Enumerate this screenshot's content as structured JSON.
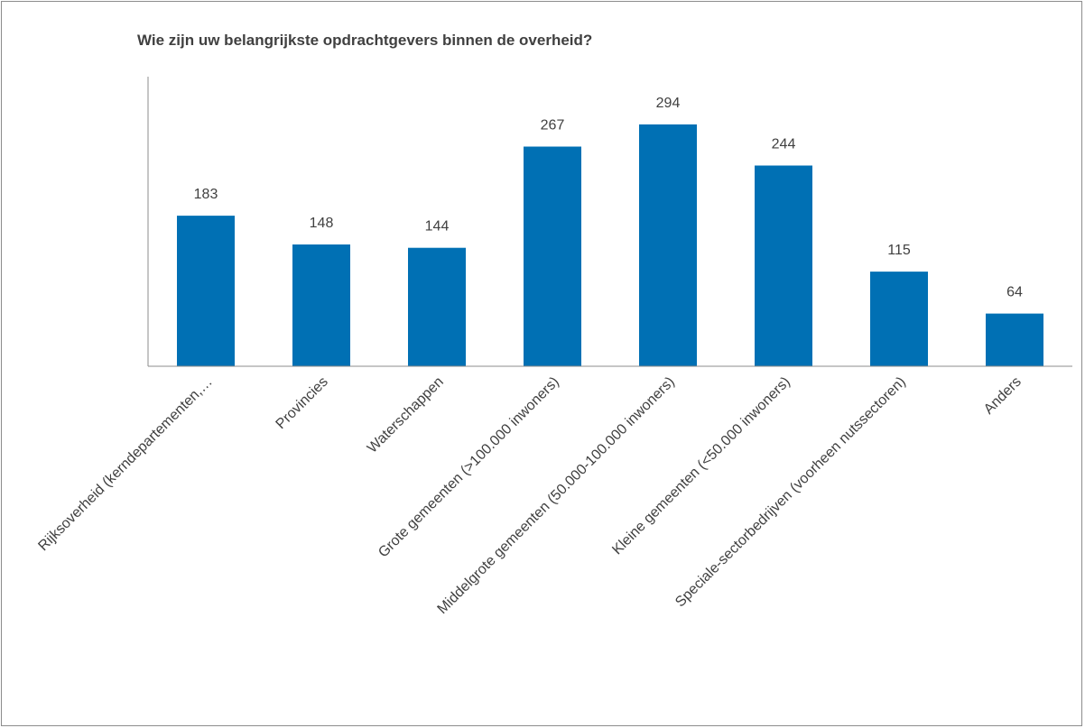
{
  "chart_data": {
    "type": "bar",
    "title": "Wie zijn uw belangrijkste opdrachtgevers binnen de overheid?",
    "categories": [
      "Rijksoverheid (kerndepartementen,…",
      "Provincies",
      "Waterschappen",
      "Grote gemeenten (>100.000 inwoners)",
      "Middelgrote gemeenten (50.000-100.000 inwoners)",
      "Kleine gemeenten (<50.000 inwoners)",
      "Speciale-sectorbedrijven (voorheen nutssectoren)",
      "Anders"
    ],
    "values": [
      183,
      148,
      144,
      267,
      294,
      244,
      115,
      64
    ],
    "ylim": [
      0,
      350
    ],
    "grid": false,
    "legend": "none",
    "colors": {
      "bar": "#0070b4",
      "text": "#404040",
      "axis": "#8c8c8c"
    }
  }
}
